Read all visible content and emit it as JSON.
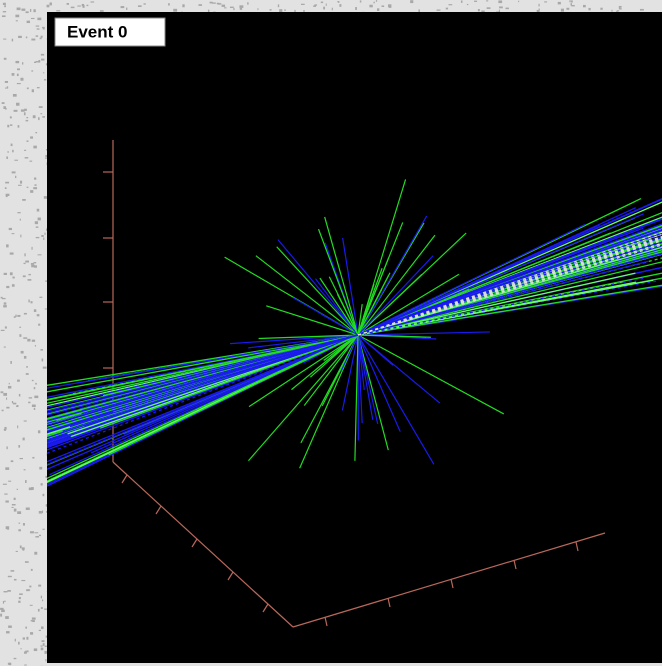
{
  "label": "Event 0"
}
